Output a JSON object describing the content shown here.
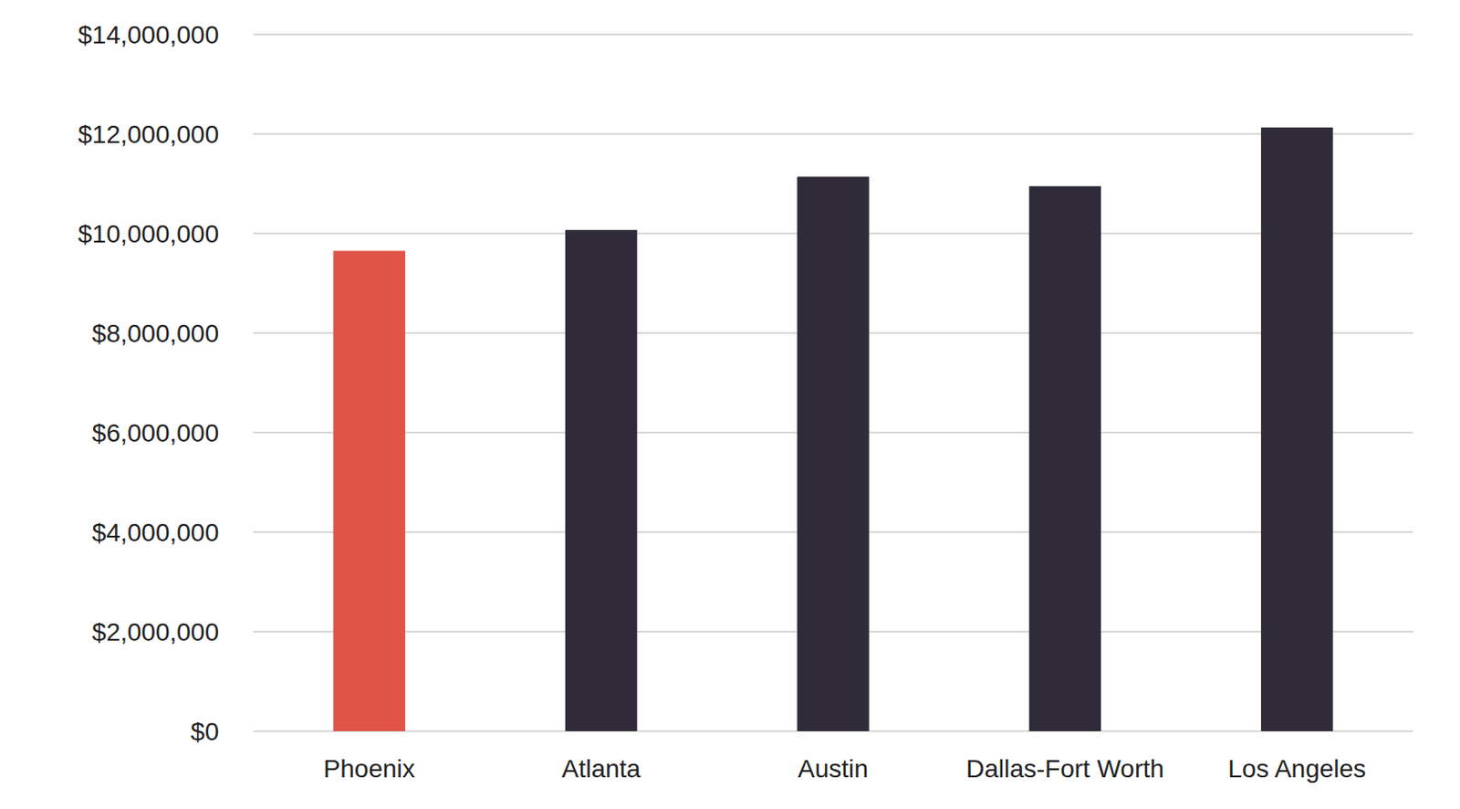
{
  "chart_data": {
    "type": "bar",
    "categories": [
      "Phoenix",
      "Atlanta",
      "Austin",
      "Dallas-Fort Worth",
      "Los Angeles"
    ],
    "values": [
      9650000,
      10070000,
      11140000,
      10950000,
      12130000
    ],
    "colors": [
      "#df5446",
      "#302b38",
      "#302b38",
      "#302b38",
      "#302b38"
    ],
    "ylim": [
      0,
      14000000
    ],
    "yticks": [
      {
        "value": 0,
        "label": "$0"
      },
      {
        "value": 2000000,
        "label": "$2,000,000"
      },
      {
        "value": 4000000,
        "label": "$4,000,000"
      },
      {
        "value": 6000000,
        "label": "$6,000,000"
      },
      {
        "value": 8000000,
        "label": "$8,000,000"
      },
      {
        "value": 10000000,
        "label": "$10,000,000"
      },
      {
        "value": 12000000,
        "label": "$12,000,000"
      },
      {
        "value": 14000000,
        "label": "$14,000,000"
      }
    ],
    "grid": true
  }
}
